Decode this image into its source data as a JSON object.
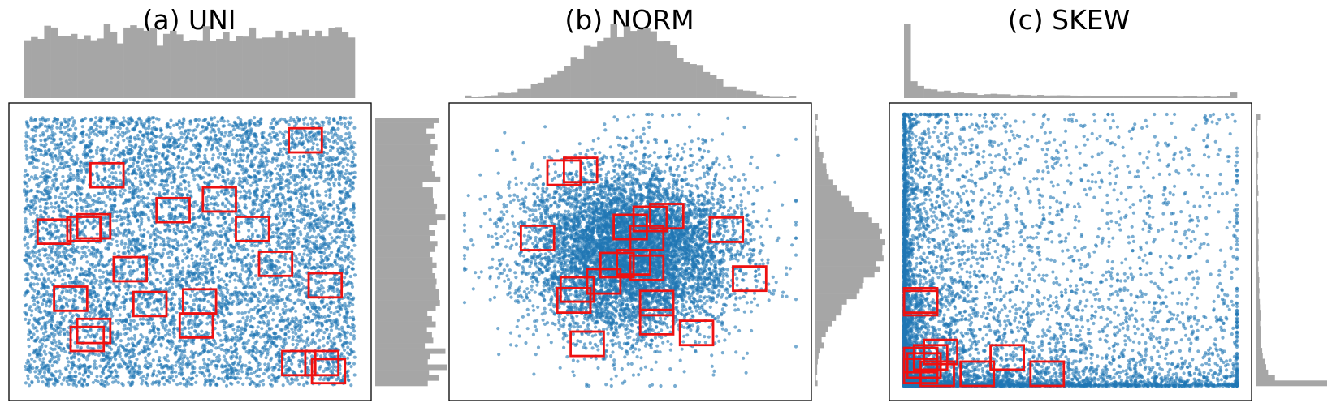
{
  "figure": {
    "colors": {
      "points": "#1f77b4",
      "query_boxes": "#ee1111",
      "histograms": "#a6a6a6",
      "frame": "#000000"
    },
    "notes_visible_text_only": true
  },
  "chart_data": [
    {
      "type": "scatter",
      "title": "(a) UNI",
      "distribution": "uniform",
      "xlim": [
        0,
        1
      ],
      "ylim": [
        0,
        1
      ],
      "axes_ticks_visible": false,
      "grid": false,
      "point_count_estimate": 10000,
      "marginal_histograms": [
        "top",
        "right"
      ],
      "query_boxes": [
        {
          "x0": 0.8,
          "y0": 0.87,
          "x1": 0.9,
          "y1": 0.96
        },
        {
          "x0": 0.2,
          "y0": 0.74,
          "x1": 0.3,
          "y1": 0.83
        },
        {
          "x0": 0.54,
          "y0": 0.65,
          "x1": 0.64,
          "y1": 0.74
        },
        {
          "x0": 0.4,
          "y0": 0.61,
          "x1": 0.5,
          "y1": 0.7
        },
        {
          "x0": 0.04,
          "y0": 0.53,
          "x1": 0.14,
          "y1": 0.62
        },
        {
          "x0": 0.13,
          "y0": 0.54,
          "x1": 0.23,
          "y1": 0.63
        },
        {
          "x0": 0.16,
          "y0": 0.55,
          "x1": 0.26,
          "y1": 0.64
        },
        {
          "x0": 0.64,
          "y0": 0.54,
          "x1": 0.74,
          "y1": 0.63
        },
        {
          "x0": 0.27,
          "y0": 0.39,
          "x1": 0.37,
          "y1": 0.48
        },
        {
          "x0": 0.71,
          "y0": 0.41,
          "x1": 0.81,
          "y1": 0.5
        },
        {
          "x0": 0.86,
          "y0": 0.33,
          "x1": 0.96,
          "y1": 0.42
        },
        {
          "x0": 0.09,
          "y0": 0.28,
          "x1": 0.19,
          "y1": 0.37
        },
        {
          "x0": 0.33,
          "y0": 0.26,
          "x1": 0.43,
          "y1": 0.35
        },
        {
          "x0": 0.48,
          "y0": 0.27,
          "x1": 0.58,
          "y1": 0.36
        },
        {
          "x0": 0.47,
          "y0": 0.18,
          "x1": 0.57,
          "y1": 0.27
        },
        {
          "x0": 0.16,
          "y0": 0.16,
          "x1": 0.26,
          "y1": 0.25
        },
        {
          "x0": 0.14,
          "y0": 0.13,
          "x1": 0.24,
          "y1": 0.22
        },
        {
          "x0": 0.78,
          "y0": 0.04,
          "x1": 0.88,
          "y1": 0.13
        },
        {
          "x0": 0.85,
          "y0": 0.04,
          "x1": 0.95,
          "y1": 0.13
        },
        {
          "x0": 0.87,
          "y0": 0.01,
          "x1": 0.97,
          "y1": 0.1
        }
      ]
    },
    {
      "type": "scatter",
      "title": "(b) NORM",
      "distribution": "normal",
      "xlim": [
        0,
        1
      ],
      "ylim": [
        0,
        1
      ],
      "center": [
        0.5,
        0.5
      ],
      "std": [
        0.16,
        0.16
      ],
      "axes_ticks_visible": false,
      "grid": false,
      "point_count_estimate": 10000,
      "marginal_histograms": [
        "top",
        "right"
      ],
      "query_boxes": [
        {
          "x0": 0.25,
          "y0": 0.74,
          "x1": 0.35,
          "y1": 0.83
        },
        {
          "x0": 0.3,
          "y0": 0.75,
          "x1": 0.4,
          "y1": 0.84
        },
        {
          "x0": 0.56,
          "y0": 0.58,
          "x1": 0.66,
          "y1": 0.67
        },
        {
          "x0": 0.51,
          "y0": 0.57,
          "x1": 0.61,
          "y1": 0.66
        },
        {
          "x0": 0.45,
          "y0": 0.54,
          "x1": 0.55,
          "y1": 0.63
        },
        {
          "x0": 0.5,
          "y0": 0.5,
          "x1": 0.6,
          "y1": 0.59
        },
        {
          "x0": 0.74,
          "y0": 0.53,
          "x1": 0.84,
          "y1": 0.62
        },
        {
          "x0": 0.17,
          "y0": 0.5,
          "x1": 0.27,
          "y1": 0.59
        },
        {
          "x0": 0.41,
          "y0": 0.4,
          "x1": 0.51,
          "y1": 0.49
        },
        {
          "x0": 0.46,
          "y0": 0.41,
          "x1": 0.56,
          "y1": 0.5
        },
        {
          "x0": 0.5,
          "y0": 0.39,
          "x1": 0.6,
          "y1": 0.48
        },
        {
          "x0": 0.37,
          "y0": 0.34,
          "x1": 0.47,
          "y1": 0.43
        },
        {
          "x0": 0.29,
          "y0": 0.31,
          "x1": 0.39,
          "y1": 0.4
        },
        {
          "x0": 0.28,
          "y0": 0.27,
          "x1": 0.38,
          "y1": 0.36
        },
        {
          "x0": 0.81,
          "y0": 0.35,
          "x1": 0.91,
          "y1": 0.44
        },
        {
          "x0": 0.53,
          "y0": 0.26,
          "x1": 0.63,
          "y1": 0.35
        },
        {
          "x0": 0.53,
          "y0": 0.19,
          "x1": 0.63,
          "y1": 0.28
        },
        {
          "x0": 0.65,
          "y0": 0.15,
          "x1": 0.75,
          "y1": 0.24
        },
        {
          "x0": 0.32,
          "y0": 0.11,
          "x1": 0.42,
          "y1": 0.2
        }
      ]
    },
    {
      "type": "scatter",
      "title": "(c) SKEW",
      "distribution": "skewed",
      "xlim": [
        0,
        1
      ],
      "ylim": [
        0,
        1
      ],
      "axes_ticks_visible": false,
      "grid": false,
      "point_count_estimate": 10000,
      "marginal_histograms": [
        "top",
        "right"
      ],
      "query_boxes": [
        {
          "x0": 0.0,
          "y0": 0.27,
          "x1": 0.1,
          "y1": 0.36
        },
        {
          "x0": 0.0,
          "y0": 0.26,
          "x1": 0.1,
          "y1": 0.35
        },
        {
          "x0": 0.06,
          "y0": 0.08,
          "x1": 0.16,
          "y1": 0.17
        },
        {
          "x0": 0.03,
          "y0": 0.06,
          "x1": 0.13,
          "y1": 0.15
        },
        {
          "x0": 0.0,
          "y0": 0.05,
          "x1": 0.1,
          "y1": 0.14
        },
        {
          "x0": 0.01,
          "y0": 0.03,
          "x1": 0.11,
          "y1": 0.12
        },
        {
          "x0": 0.0,
          "y0": 0.01,
          "x1": 0.1,
          "y1": 0.1
        },
        {
          "x0": 0.05,
          "y0": 0.0,
          "x1": 0.15,
          "y1": 0.09
        },
        {
          "x0": 0.17,
          "y0": 0.0,
          "x1": 0.27,
          "y1": 0.09
        },
        {
          "x0": 0.26,
          "y0": 0.06,
          "x1": 0.36,
          "y1": 0.15
        },
        {
          "x0": 0.38,
          "y0": 0.0,
          "x1": 0.48,
          "y1": 0.09
        }
      ]
    }
  ]
}
